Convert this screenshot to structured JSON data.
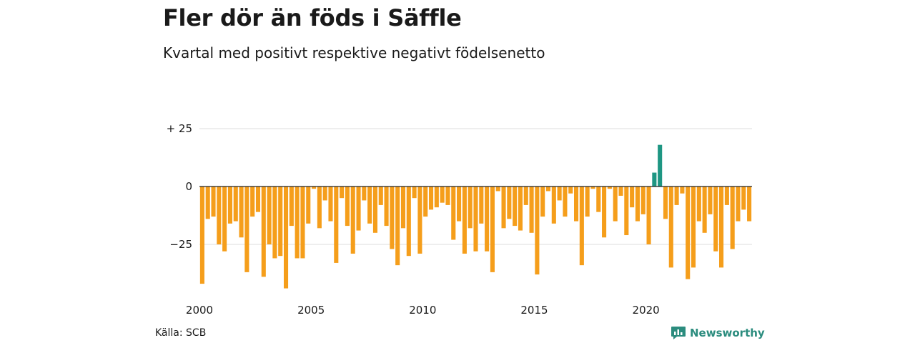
{
  "title": "Fler dör än föds i Säffle",
  "subtitle": "Kvartal med positivt respektive negativt födelsenetto",
  "source": "Källa: SCB",
  "brand": "Newsworthy",
  "colors": {
    "negative": "#f59e1b",
    "positive": "#1e9683",
    "grid": "#dddddd",
    "brand": "#2b8c7e"
  },
  "chart_data": {
    "type": "bar",
    "title": "Fler dör än föds i Säffle",
    "subtitle": "Kvartal med positivt respektive negativt födelsenetto",
    "xlabel": "",
    "ylabel": "",
    "ylim": [
      -45,
      30
    ],
    "y_ticks": [
      {
        "value": 25,
        "label": "+ 25"
      },
      {
        "value": 0,
        "label": "0"
      },
      {
        "value": -25,
        "label": "−25"
      }
    ],
    "x_ticks": [
      "2000",
      "2005",
      "2010",
      "2015",
      "2020"
    ],
    "grid": true,
    "start": "2000 Q1",
    "values": [
      -42,
      -14,
      -13,
      -25,
      -28,
      -16,
      -15,
      -22,
      -37,
      -13,
      -11,
      -39,
      -25,
      -31,
      -30,
      -44,
      -17,
      -31,
      -31,
      -16,
      -1,
      -18,
      -6,
      -15,
      -33,
      -5,
      -17,
      -29,
      -19,
      -6,
      -16,
      -20,
      -8,
      -17,
      -27,
      -34,
      -18,
      -30,
      -5,
      -29,
      -13,
      -10,
      -9,
      -7,
      -8,
      -23,
      -15,
      -29,
      -18,
      -28,
      -16,
      -28,
      -37,
      -2,
      -18,
      -14,
      -17,
      -19,
      -8,
      -20,
      -38,
      -13,
      -2,
      -16,
      -6,
      -13,
      -3,
      -15,
      -34,
      -13,
      -1,
      -11,
      -22,
      -1,
      -15,
      -4,
      -21,
      -9,
      -15,
      -12,
      -25,
      6,
      18,
      -14,
      -35,
      -8,
      -3,
      -40,
      -35,
      -15,
      -20,
      -12,
      -28,
      -35,
      -8,
      -27,
      -15,
      -10,
      -15
    ]
  }
}
